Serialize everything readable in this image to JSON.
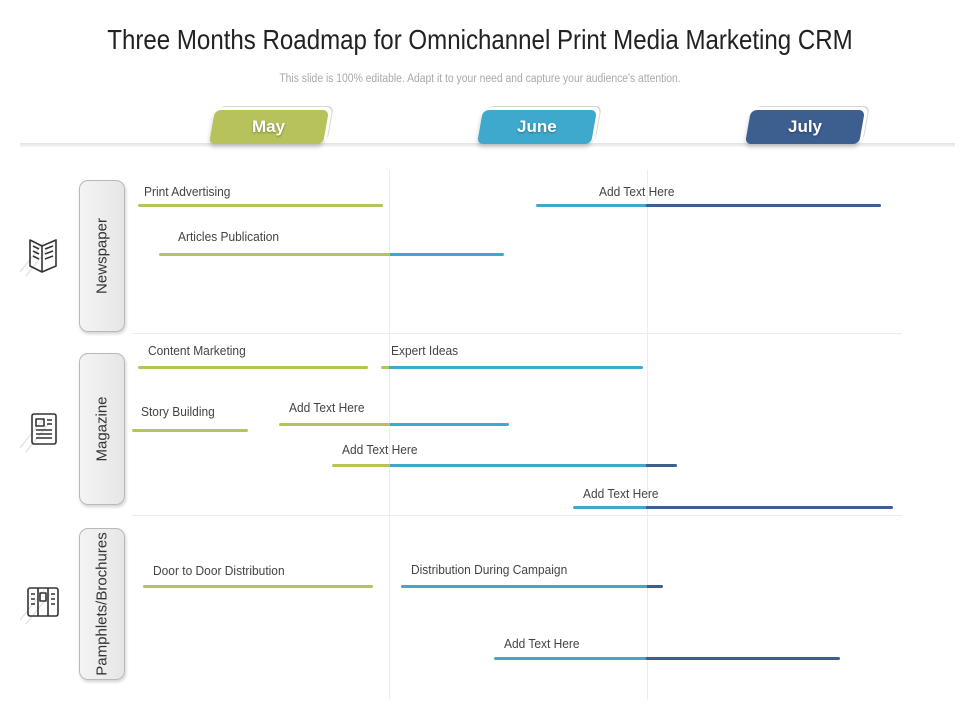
{
  "title": "Three Months Roadmap for Omnichannel Print Media Marketing CRM",
  "subtitle": "This slide is 100% editable. Adapt it to your need and capture your audience's attention.",
  "colors": {
    "may": "#b7c25b",
    "june": "#3fa9cd",
    "july": "#3d5f8f"
  },
  "months": [
    {
      "label": "May",
      "color": "#b7c25b"
    },
    {
      "label": "June",
      "color": "#3fa9cd"
    },
    {
      "label": "July",
      "color": "#3d5f8f"
    }
  ],
  "rows": [
    {
      "label": "Newspaper",
      "icon": "newspaper-icon"
    },
    {
      "label": "Magazine",
      "icon": "magazine-icon"
    },
    {
      "label": "Pamphlets/Brochures",
      "icon": "brochure-icon"
    }
  ],
  "tasks": [
    {
      "label": "Print Advertising"
    },
    {
      "label": "Add Text Here"
    },
    {
      "label": "Articles Publication"
    },
    {
      "label": "Content Marketing"
    },
    {
      "label": "Expert  Ideas"
    },
    {
      "label": "Story Building"
    },
    {
      "label": "Add Text Here"
    },
    {
      "label": "Add Text Here"
    },
    {
      "label": "Add Text Here"
    },
    {
      "label": "Door to Door Distribution"
    },
    {
      "label": "Distribution During Campaign"
    },
    {
      "label": "Add Text Here"
    }
  ]
}
